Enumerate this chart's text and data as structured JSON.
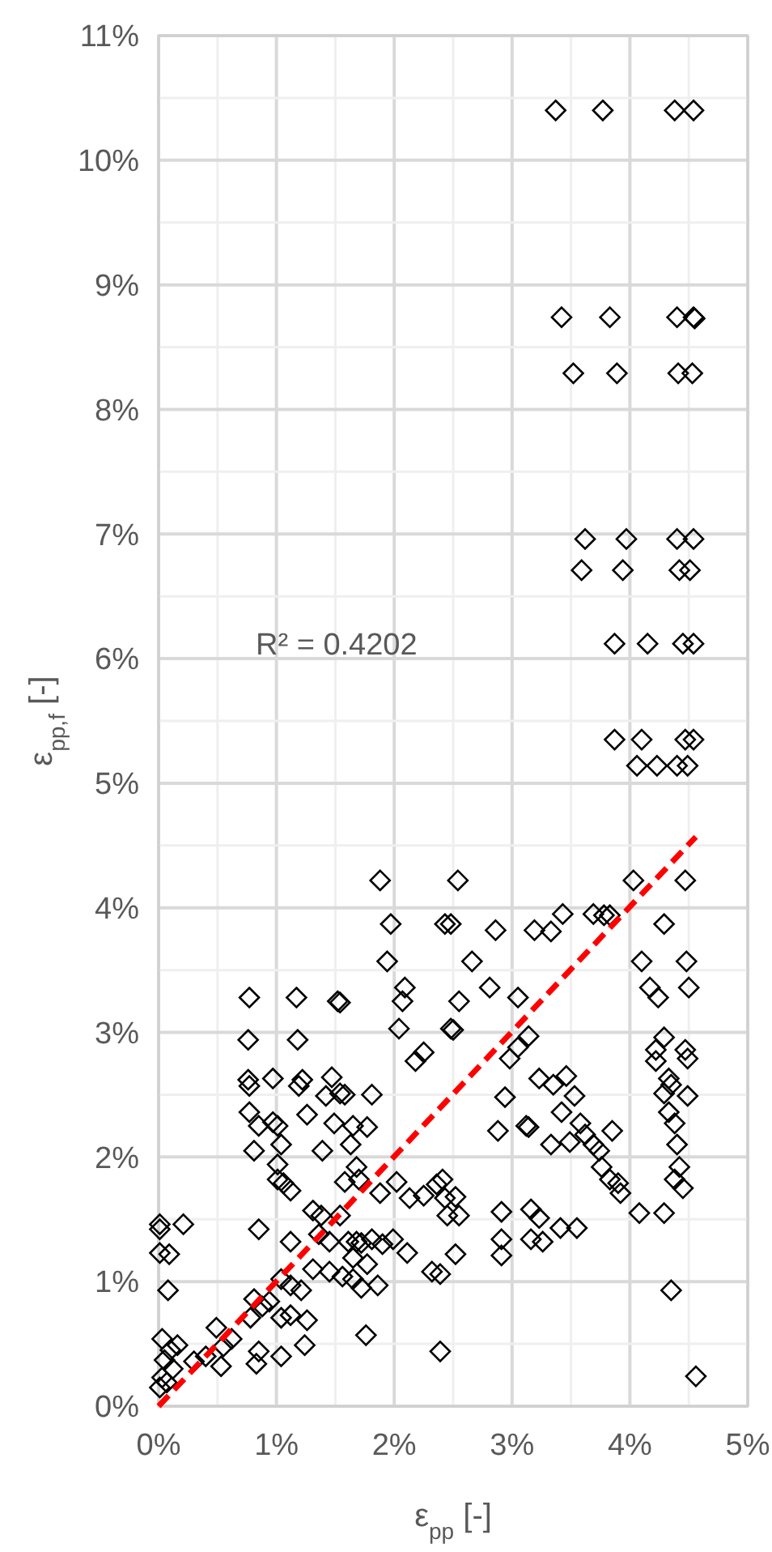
{
  "chart_data": {
    "type": "scatter",
    "xlabel": "ε$_{pp}$ [-]",
    "ylabel": "ε$_{pp,f}$ [-]",
    "annotations": [
      "R² = 0.4202"
    ],
    "xlim": [
      0,
      5
    ],
    "ylim": [
      0,
      11
    ],
    "xticks": [
      {
        "value": 0,
        "label": "0%"
      },
      {
        "value": 0.5,
        "label": null
      },
      {
        "value": 1,
        "label": "1%"
      },
      {
        "value": 1.5,
        "label": null
      },
      {
        "value": 2,
        "label": "2%"
      },
      {
        "value": 2.5,
        "label": null
      },
      {
        "value": 3,
        "label": "3%"
      },
      {
        "value": 3.5,
        "label": null
      },
      {
        "value": 4,
        "label": "4%"
      },
      {
        "value": 4.5,
        "label": null
      },
      {
        "value": 5,
        "label": "5%"
      }
    ],
    "yticks": [
      {
        "value": 0,
        "label": "0%"
      },
      {
        "value": 0.5,
        "label": null
      },
      {
        "value": 1,
        "label": "1%"
      },
      {
        "value": 1.5,
        "label": null
      },
      {
        "value": 2,
        "label": "2%"
      },
      {
        "value": 2.5,
        "label": null
      },
      {
        "value": 3,
        "label": "3%"
      },
      {
        "value": 3.5,
        "label": null
      },
      {
        "value": 4,
        "label": "4%"
      },
      {
        "value": 4.5,
        "label": null
      },
      {
        "value": 5,
        "label": "5%"
      },
      {
        "value": 5.5,
        "label": null
      },
      {
        "value": 6,
        "label": "6%"
      },
      {
        "value": 6.5,
        "label": null
      },
      {
        "value": 7,
        "label": "7%"
      },
      {
        "value": 7.5,
        "label": null
      },
      {
        "value": 8,
        "label": "8%"
      },
      {
        "value": 8.5,
        "label": null
      },
      {
        "value": 9,
        "label": "9%"
      },
      {
        "value": 9.5,
        "label": null
      },
      {
        "value": 10,
        "label": "10%"
      },
      {
        "value": 10.5,
        "label": null
      },
      {
        "value": 11,
        "label": "11%"
      }
    ],
    "grid": true,
    "series": [
      {
        "color": "#000000",
        "marker": "diamond",
        "x": [
          3.37,
          3.77,
          4.38,
          4.54,
          3.42,
          3.83,
          4.4,
          4.54,
          4.55,
          3.52,
          3.89,
          4.41,
          4.53,
          3.62,
          3.97,
          4.4,
          4.54,
          3.59,
          3.94,
          4.42,
          4.51,
          3.87,
          4.15,
          4.45,
          4.54,
          3.87,
          4.1,
          4.47,
          4.54,
          4.06,
          4.23,
          4.4,
          4.49,
          1.88,
          1.97,
          1.94,
          2.09,
          2.07,
          2.04,
          2.18,
          2.25,
          0.77,
          1.17,
          1.52,
          1.54,
          0.76,
          1.18,
          0.76,
          0.77,
          0.97,
          1.22,
          1.19,
          1.47,
          1.42,
          1.54,
          1.58,
          1.81,
          0.77,
          0.85,
          0.97,
          1.01,
          1.26,
          1.49,
          1.65,
          1.77,
          0.81,
          1.04,
          1.01,
          1.39,
          1.63,
          1.01,
          1.06,
          1.12,
          1.68,
          1.58,
          1.7,
          1.88,
          2.02,
          2.13,
          2.25,
          2.36,
          2.43,
          0.01,
          0.01,
          0.21,
          0.01,
          0.09,
          0.85,
          1.12,
          1.31,
          1.38,
          1.54,
          1.36,
          1.45,
          1.61,
          1.68,
          1.72,
          1.81,
          1.9,
          1.99,
          2.11,
          2.32,
          2.39,
          1.65,
          1.77,
          1.31,
          1.45,
          1.56,
          1.65,
          1.72,
          1.86,
          1.04,
          1.12,
          1.21,
          0.08,
          0.94,
          1.04,
          1.12,
          1.26,
          0.81,
          0.88,
          0.78,
          1.24,
          0.85,
          0.83,
          1.04,
          0.49,
          0.62,
          0.55,
          0.53,
          0.4,
          0.3,
          1.76,
          2.39,
          0.03,
          0.1,
          0.05,
          0.12,
          0.03,
          0.07,
          0.01,
          0.16,
          2.54,
          4.03,
          4.47,
          2.43,
          2.48,
          2.86,
          3.19,
          3.33,
          3.43,
          3.69,
          3.78,
          3.83,
          4.29,
          2.66,
          4.1,
          4.48,
          2.81,
          3.05,
          2.55,
          4.17,
          4.24,
          4.5,
          2.48,
          2.5,
          3.14,
          3.05,
          2.98,
          4.29,
          4.22,
          4.22,
          4.47,
          4.49,
          3.23,
          3.35,
          3.46,
          3.53,
          2.94,
          4.33,
          4.29,
          4.35,
          4.49,
          2.88,
          3.12,
          3.14,
          3.42,
          3.33,
          3.49,
          3.58,
          3.62,
          3.69,
          3.74,
          3.85,
          3.76,
          3.83,
          3.9,
          3.92,
          4.33,
          4.38,
          4.4,
          4.42,
          4.38,
          4.45,
          4.08,
          4.29,
          4.35,
          4.56,
          2.91,
          3.16,
          3.23,
          3.55,
          3.41,
          2.91,
          2.91,
          3.16,
          3.26,
          2.52,
          2.41,
          2.52,
          2.45,
          2.55
        ],
        "values": [
          10.4,
          10.4,
          10.4,
          10.4,
          8.74,
          8.74,
          8.74,
          8.74,
          8.73,
          8.29,
          8.29,
          8.29,
          8.29,
          6.96,
          6.96,
          6.96,
          6.96,
          6.71,
          6.71,
          6.71,
          6.71,
          6.12,
          6.12,
          6.12,
          6.12,
          5.35,
          5.35,
          5.35,
          5.35,
          5.14,
          5.14,
          5.14,
          5.14,
          4.22,
          3.87,
          3.57,
          3.36,
          3.25,
          3.03,
          2.77,
          2.84,
          3.28,
          3.28,
          3.25,
          3.24,
          2.94,
          2.94,
          2.62,
          2.57,
          2.63,
          2.62,
          2.57,
          2.64,
          2.49,
          2.51,
          2.5,
          2.5,
          2.36,
          2.25,
          2.28,
          2.25,
          2.34,
          2.27,
          2.25,
          2.24,
          2.05,
          2.1,
          1.94,
          2.05,
          2.1,
          1.82,
          1.79,
          1.73,
          1.92,
          1.8,
          1.82,
          1.71,
          1.8,
          1.67,
          1.69,
          1.78,
          1.67,
          1.46,
          1.42,
          1.46,
          1.23,
          1.22,
          1.42,
          1.32,
          1.57,
          1.53,
          1.53,
          1.38,
          1.32,
          1.32,
          1.32,
          1.31,
          1.34,
          1.3,
          1.34,
          1.23,
          1.08,
          1.06,
          1.19,
          1.14,
          1.1,
          1.08,
          1.04,
          1.02,
          0.95,
          0.97,
          1.02,
          0.97,
          0.93,
          0.93,
          0.84,
          0.71,
          0.73,
          0.69,
          0.86,
          0.8,
          0.71,
          0.49,
          0.44,
          0.34,
          0.4,
          0.63,
          0.54,
          0.48,
          0.32,
          0.4,
          0.36,
          0.57,
          0.44,
          0.54,
          0.45,
          0.37,
          0.3,
          0.23,
          0.19,
          0.15,
          0.49,
          4.22,
          4.22,
          4.22,
          3.87,
          3.87,
          3.82,
          3.82,
          3.81,
          3.95,
          3.95,
          3.94,
          3.94,
          3.87,
          3.57,
          3.57,
          3.57,
          3.36,
          3.28,
          3.25,
          3.36,
          3.28,
          3.36,
          3.03,
          3.02,
          2.97,
          2.88,
          2.79,
          2.96,
          2.86,
          2.77,
          2.86,
          2.79,
          2.63,
          2.58,
          2.65,
          2.49,
          2.48,
          2.63,
          2.51,
          2.58,
          2.49,
          2.21,
          2.25,
          2.24,
          2.36,
          2.1,
          2.12,
          2.27,
          2.18,
          2.1,
          2.05,
          2.21,
          1.92,
          1.82,
          1.79,
          1.71,
          2.36,
          2.27,
          2.1,
          1.92,
          1.82,
          1.75,
          1.55,
          1.55,
          0.93,
          0.24,
          1.56,
          1.58,
          1.51,
          1.43,
          1.43,
          1.34,
          1.21,
          1.34,
          1.32,
          1.22,
          1.82,
          1.68,
          1.53,
          1.53
        ]
      },
      {
        "type": "line",
        "color": "#ff0000",
        "marker": "none",
        "line_style": "dashed",
        "x": [
          0,
          4.56
        ],
        "values": [
          0,
          4.57
        ]
      }
    ]
  }
}
